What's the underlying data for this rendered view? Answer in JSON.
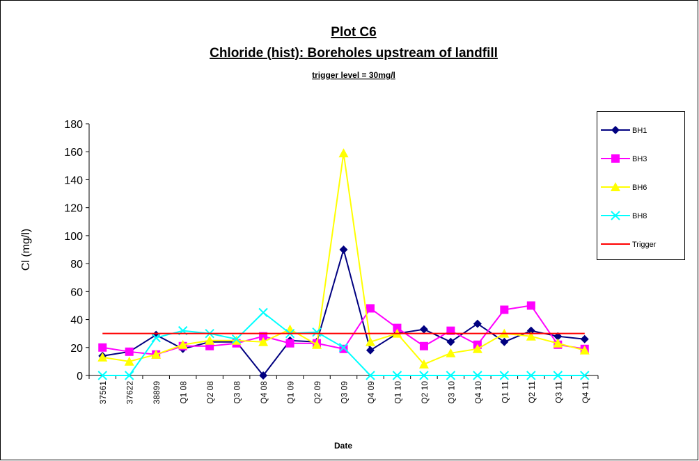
{
  "chart_data": {
    "type": "line",
    "title": "Plot C6",
    "subtitle": "Chloride (hist): Boreholes upstream of landfill",
    "annotation": "trigger level = 30mg/l",
    "x_label": "Date",
    "y_label": "Cl (mg/l)",
    "categories": [
      "37561",
      "37622",
      "38899",
      "Q1 08",
      "Q2 08",
      "Q3 08",
      "Q4 08",
      "Q1 09",
      "Q2 09",
      "Q3 09",
      "Q4 09",
      "Q1 10",
      "Q2 10",
      "Q3 10",
      "Q4 10",
      "Q1 11",
      "Q2 11",
      "Q3 11",
      "Q4 11"
    ],
    "ylim": [
      0,
      180
    ],
    "yticks": [
      0,
      20,
      40,
      60,
      80,
      100,
      120,
      140,
      160,
      180
    ],
    "legend": "right",
    "series": [
      {
        "name": "BH1",
        "color": "#000080",
        "marker": "diamond",
        "values": [
          14,
          17,
          29,
          19,
          24,
          24,
          0,
          25,
          24,
          90,
          18,
          30,
          33,
          24,
          37,
          24,
          32,
          28,
          26
        ]
      },
      {
        "name": "BH3",
        "color": "#ff00ff",
        "marker": "square",
        "values": [
          20,
          17,
          15,
          21,
          21,
          23,
          28,
          23,
          23,
          19,
          48,
          34,
          21,
          32,
          22,
          47,
          50,
          22,
          19
        ]
      },
      {
        "name": "BH6",
        "color": "#ffff00",
        "marker": "triangle",
        "values": [
          13,
          10,
          15,
          22,
          25,
          25,
          24,
          33,
          22,
          159,
          24,
          30,
          8,
          16,
          19,
          30,
          28,
          23,
          18
        ]
      },
      {
        "name": "BH8",
        "color": "#00ffff",
        "marker": "x",
        "values": [
          0,
          0,
          27,
          32,
          30,
          26,
          45,
          30,
          31,
          20,
          0,
          0,
          0,
          0,
          0,
          0,
          0,
          0,
          0
        ]
      },
      {
        "name": "Trigger",
        "color": "#ff0000",
        "marker": "none",
        "values": [
          30,
          30,
          30,
          30,
          30,
          30,
          30,
          30,
          30,
          30,
          30,
          30,
          30,
          30,
          30,
          30,
          30,
          30,
          30
        ]
      }
    ]
  }
}
